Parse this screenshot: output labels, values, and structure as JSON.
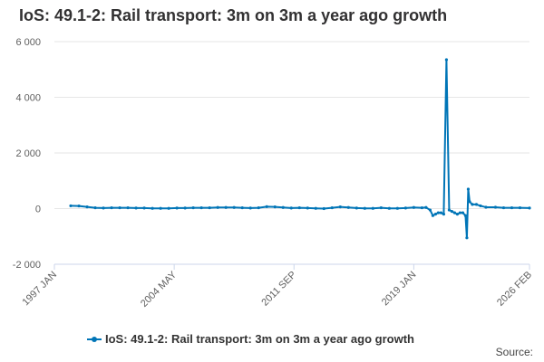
{
  "chart_data": {
    "type": "line",
    "title": "IoS: 49.1-2: Rail transport: 3m on 3m a year ago growth",
    "xlabel": "",
    "ylabel": "",
    "x_range": [
      "1997-01",
      "2026-02"
    ],
    "ylim": [
      -2000,
      6000
    ],
    "yticks": [
      -2000,
      0,
      2000,
      4000,
      6000
    ],
    "ytick_labels": [
      "-2 000",
      "0",
      "2 000",
      "4 000",
      "6 000"
    ],
    "xticks": [
      {
        "x": "1997-01",
        "label": "1997 JAN"
      },
      {
        "x": "2004-05",
        "label": "2004 MAY"
      },
      {
        "x": "2011-09",
        "label": "2011 SEP"
      },
      {
        "x": "2019-01",
        "label": "2019 JAN"
      },
      {
        "x": "2026-02",
        "label": "2026 FEB"
      }
    ],
    "grid": true,
    "legend_position": "bottom",
    "series": [
      {
        "name": "IoS: 49.1-2: Rail transport: 3m on 3m a year ago growth",
        "color": "#0075b7",
        "points": [
          [
            "1998-01",
            100
          ],
          [
            "1998-07",
            95
          ],
          [
            "1999-01",
            60
          ],
          [
            "1999-07",
            30
          ],
          [
            "2000-01",
            20
          ],
          [
            "2000-07",
            30
          ],
          [
            "2001-01",
            30
          ],
          [
            "2001-07",
            30
          ],
          [
            "2002-01",
            20
          ],
          [
            "2002-07",
            20
          ],
          [
            "2003-01",
            10
          ],
          [
            "2003-07",
            10
          ],
          [
            "2004-01",
            10
          ],
          [
            "2004-07",
            20
          ],
          [
            "2005-01",
            20
          ],
          [
            "2005-07",
            30
          ],
          [
            "2006-01",
            30
          ],
          [
            "2006-07",
            30
          ],
          [
            "2007-01",
            40
          ],
          [
            "2007-07",
            40
          ],
          [
            "2008-01",
            40
          ],
          [
            "2008-07",
            30
          ],
          [
            "2009-01",
            20
          ],
          [
            "2009-07",
            30
          ],
          [
            "2010-01",
            70
          ],
          [
            "2010-07",
            60
          ],
          [
            "2011-01",
            40
          ],
          [
            "2011-07",
            20
          ],
          [
            "2012-01",
            30
          ],
          [
            "2012-07",
            20
          ],
          [
            "2013-01",
            10
          ],
          [
            "2013-07",
            0
          ],
          [
            "2014-01",
            30
          ],
          [
            "2014-07",
            60
          ],
          [
            "2015-01",
            40
          ],
          [
            "2015-07",
            20
          ],
          [
            "2016-01",
            10
          ],
          [
            "2016-07",
            10
          ],
          [
            "2017-01",
            30
          ],
          [
            "2017-07",
            10
          ],
          [
            "2018-01",
            10
          ],
          [
            "2018-07",
            20
          ],
          [
            "2019-01",
            40
          ],
          [
            "2019-07",
            30
          ],
          [
            "2019-10",
            40
          ],
          [
            "2020-01",
            -50
          ],
          [
            "2020-03",
            -250
          ],
          [
            "2020-05",
            -200
          ],
          [
            "2020-07",
            -150
          ],
          [
            "2020-09",
            -150
          ],
          [
            "2020-11",
            -200
          ],
          [
            "2021-01",
            5350
          ],
          [
            "2021-03",
            -50
          ],
          [
            "2021-05",
            -100
          ],
          [
            "2021-07",
            -150
          ],
          [
            "2021-09",
            -200
          ],
          [
            "2021-11",
            -150
          ],
          [
            "2022-01",
            -150
          ],
          [
            "2022-03",
            -250
          ],
          [
            "2022-04",
            -1050
          ],
          [
            "2022-05",
            700
          ],
          [
            "2022-06",
            250
          ],
          [
            "2022-08",
            150
          ],
          [
            "2022-11",
            150
          ],
          [
            "2023-02",
            100
          ],
          [
            "2023-06",
            50
          ],
          [
            "2024-01",
            50
          ],
          [
            "2024-07",
            30
          ],
          [
            "2025-01",
            30
          ],
          [
            "2025-07",
            30
          ],
          [
            "2026-02",
            20
          ]
        ]
      }
    ],
    "source_label": "Source:"
  }
}
